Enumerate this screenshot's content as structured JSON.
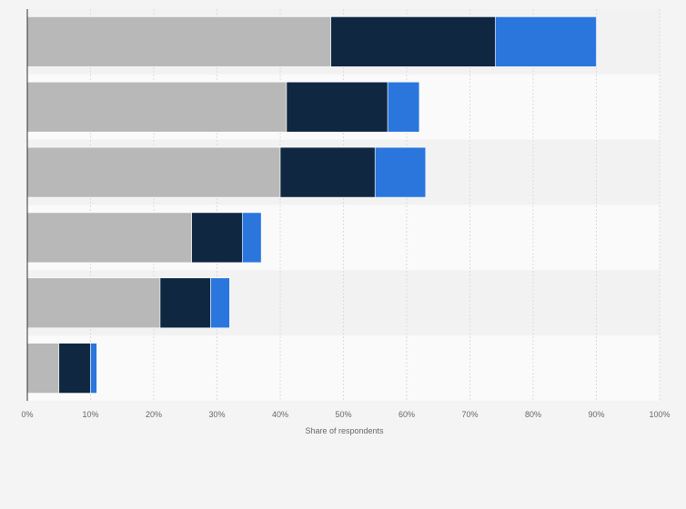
{
  "chart_data": {
    "type": "bar",
    "orientation": "horizontal",
    "stacked": true,
    "title": "",
    "xlabel": "Share of respondents",
    "ylabel": "",
    "xlim": [
      0,
      100
    ],
    "x_unit": "%",
    "x_ticks": [
      "0%",
      "10%",
      "20%",
      "30%",
      "40%",
      "50%",
      "60%",
      "70%",
      "80%",
      "90%",
      "100%"
    ],
    "categories": [
      "",
      "",
      "",
      "",
      "",
      ""
    ],
    "series": [
      {
        "values": [
          48,
          41,
          40,
          26,
          21,
          5
        ],
        "color": "#b8b8b8"
      },
      {
        "values": [
          26,
          16,
          15,
          8,
          8,
          5
        ],
        "color": "#0f2741"
      },
      {
        "values": [
          16,
          5,
          8,
          3,
          3,
          1
        ],
        "color": "#2a76dd"
      }
    ],
    "grid": true,
    "legend": "none"
  }
}
